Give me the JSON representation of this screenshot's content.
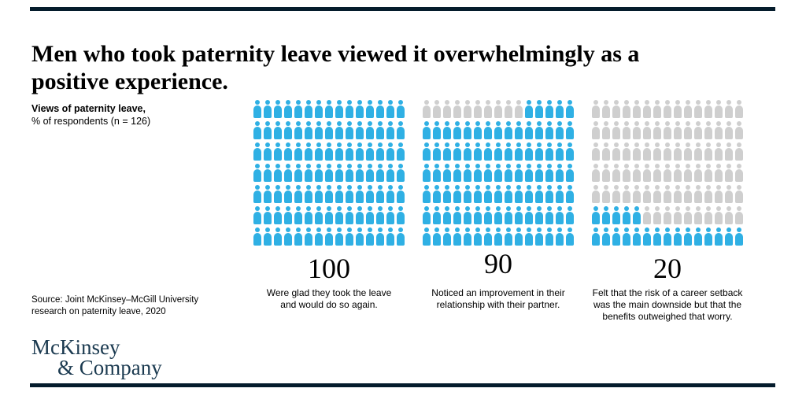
{
  "title": {
    "lines": [
      "Men who took paternity leave viewed it overwhelmingly as a",
      "positive experience."
    ]
  },
  "chart_label": {
    "line1": "Views of paternity leave,",
    "line2": "% of respondents (n = 126)"
  },
  "chart_data": {
    "type": "pictogram",
    "title": "Views of paternity leave, % of respondents (n = 126)",
    "unit": "% of respondents",
    "n": 126,
    "grid": {
      "rows": 7,
      "cols": 15
    },
    "series": [
      {
        "value": 100,
        "label": "Were glad they took the leave and would do so again."
      },
      {
        "value": 90,
        "label": "Noticed an improvement in their relationship with their partner."
      },
      {
        "value": 20,
        "label": "Felt that the risk of a career setback was the main downside but that the benefits outweighed that worry."
      }
    ]
  },
  "pictogram": {
    "grids": [
      {
        "value": "100",
        "caption_lines": [
          "Were glad they took the leave",
          "and would do so again."
        ],
        "rows": [
          [
            [
              "b",
              15
            ]
          ],
          [
            [
              "b",
              15
            ]
          ],
          [
            [
              "b",
              15
            ]
          ],
          [
            [
              "b",
              15
            ]
          ],
          [
            [
              "b",
              15
            ]
          ],
          [
            [
              "b",
              15
            ]
          ],
          [
            [
              "b",
              15
            ]
          ]
        ]
      },
      {
        "value": "90",
        "caption_lines": [
          "Noticed an improvement in their",
          "relationship with their partner."
        ],
        "rows": [
          [
            [
              "g",
              10
            ],
            [
              "b",
              5
            ]
          ],
          [
            [
              "b",
              15
            ]
          ],
          [
            [
              "b",
              15
            ]
          ],
          [
            [
              "b",
              15
            ]
          ],
          [
            [
              "b",
              15
            ]
          ],
          [
            [
              "b",
              15
            ]
          ],
          [
            [
              "b",
              15
            ]
          ]
        ]
      },
      {
        "value": "20",
        "caption_lines": [
          "Felt that the risk of a career setback",
          "was the main downside but that the",
          "benefits outweighed that worry."
        ],
        "rows": [
          [
            [
              "g",
              15
            ]
          ],
          [
            [
              "g",
              15
            ]
          ],
          [
            [
              "g",
              15
            ]
          ],
          [
            [
              "g",
              15
            ]
          ],
          [
            [
              "g",
              15
            ]
          ],
          [
            [
              "b",
              5
            ],
            [
              "g",
              10
            ]
          ],
          [
            [
              "b",
              15
            ]
          ]
        ]
      }
    ]
  },
  "source": {
    "lines": [
      "Source: Joint McKinsey–McGill University",
      "research on paternity leave, 2020"
    ]
  },
  "logo": {
    "line1": "McKinsey",
    "line2": "& Company"
  },
  "colors": {
    "figure_blue": "#2FB0E4",
    "figure_gray": "#CFCFCF",
    "rule": "#051C2C",
    "logo_navy": "#1B3A50",
    "text": "#000000"
  }
}
